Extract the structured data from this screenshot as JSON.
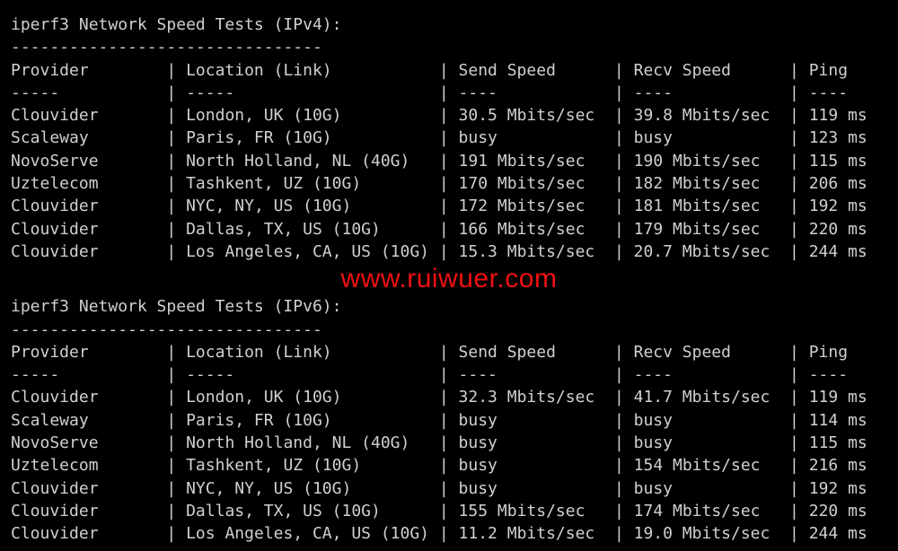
{
  "watermark": "www.ruiwuer.com",
  "headers": {
    "provider": "Provider",
    "location": "Location (Link)",
    "send": "Send Speed",
    "recv": "Recv Speed",
    "ping": "Ping"
  },
  "sections": [
    {
      "title": "iperf3 Network Speed Tests (IPv4):",
      "rows": [
        [
          "Clouvider",
          "London, UK (10G)",
          "30.5 Mbits/sec",
          "39.8 Mbits/sec",
          "119 ms"
        ],
        [
          "Scaleway",
          "Paris, FR (10G)",
          "busy",
          "busy",
          "123 ms"
        ],
        [
          "NovoServe",
          "North Holland, NL (40G)",
          "191 Mbits/sec",
          "190 Mbits/sec",
          "115 ms"
        ],
        [
          "Uztelecom",
          "Tashkent, UZ (10G)",
          "170 Mbits/sec",
          "182 Mbits/sec",
          "206 ms"
        ],
        [
          "Clouvider",
          "NYC, NY, US (10G)",
          "172 Mbits/sec",
          "181 Mbits/sec",
          "192 ms"
        ],
        [
          "Clouvider",
          "Dallas, TX, US (10G)",
          "166 Mbits/sec",
          "179 Mbits/sec",
          "220 ms"
        ],
        [
          "Clouvider",
          "Los Angeles, CA, US (10G)",
          "15.3 Mbits/sec",
          "20.7 Mbits/sec",
          "244 ms"
        ]
      ]
    },
    {
      "title": "iperf3 Network Speed Tests (IPv6):",
      "rows": [
        [
          "Clouvider",
          "London, UK (10G)",
          "32.3 Mbits/sec",
          "41.7 Mbits/sec",
          "119 ms"
        ],
        [
          "Scaleway",
          "Paris, FR (10G)",
          "busy",
          "busy",
          "114 ms"
        ],
        [
          "NovoServe",
          "North Holland, NL (40G)",
          "busy",
          "busy",
          "115 ms"
        ],
        [
          "Uztelecom",
          "Tashkent, UZ (10G)",
          "busy",
          "154 Mbits/sec",
          "216 ms"
        ],
        [
          "Clouvider",
          "NYC, NY, US (10G)",
          "busy",
          "busy",
          "192 ms"
        ],
        [
          "Clouvider",
          "Dallas, TX, US (10G)",
          "155 Mbits/sec",
          "174 Mbits/sec",
          "220 ms"
        ],
        [
          "Clouvider",
          "Los Angeles, CA, US (10G)",
          "11.2 Mbits/sec",
          "19.0 Mbits/sec",
          "244 ms"
        ]
      ]
    }
  ]
}
